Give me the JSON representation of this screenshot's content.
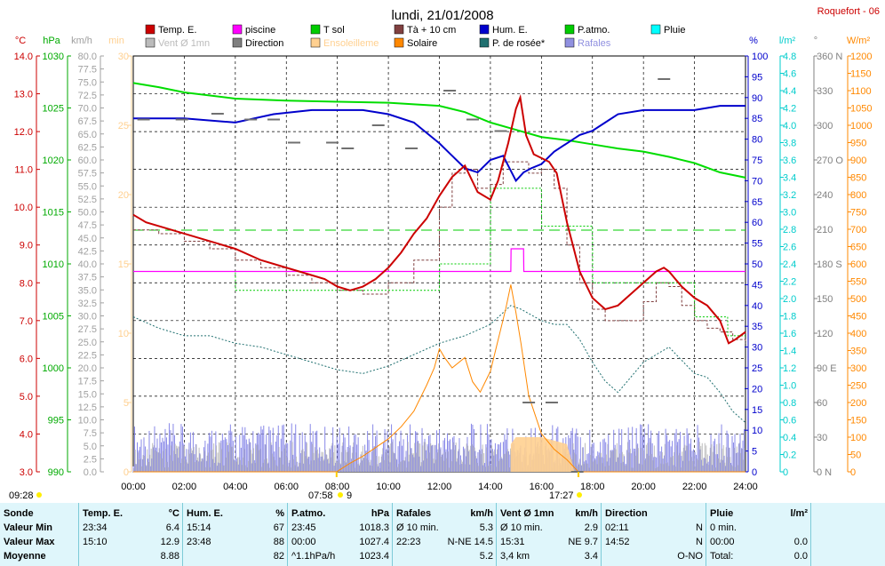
{
  "chart_data": {
    "type": "line",
    "title": "lundi, 21/01/2008",
    "station": "Roquefort - 06",
    "x_ticks": [
      "00:00",
      "02:00",
      "04:00",
      "06:00",
      "08:00",
      "10:00",
      "12:00",
      "14:00",
      "16:00",
      "18:00",
      "20:00",
      "22:00",
      "24:00"
    ],
    "legend": [
      {
        "name": "Temp. E.",
        "color": "#cc0000"
      },
      {
        "name": "piscine",
        "color": "#ff00ff"
      },
      {
        "name": "T sol",
        "color": "#00cc00"
      },
      {
        "name": "Tà + 10 cm",
        "color": "#804040"
      },
      {
        "name": "Hum. E.",
        "color": "#0000cc"
      },
      {
        "name": "P.atmo.",
        "color": "#00cc00"
      },
      {
        "name": "Pluie",
        "color": "#00ffff"
      },
      {
        "name": "Vent Ø 1mn",
        "color": "#bbbbbb"
      },
      {
        "name": "Direction",
        "color": "#808080"
      },
      {
        "name": "Ensoleilleme",
        "color": "#ffd090"
      },
      {
        "name": "Solaire",
        "color": "#ff8800"
      },
      {
        "name": "P. de rosée*",
        "color": "#207070"
      },
      {
        "name": "Rafales",
        "color": "#9090e0"
      }
    ],
    "axes": {
      "temp_c": {
        "unit": "°C",
        "ticks": [
          "14.0",
          "13.0",
          "12.0",
          "11.0",
          "10.0",
          "9.0",
          "8.0",
          "7.0",
          "6.0",
          "5.0",
          "4.0",
          "3.0"
        ],
        "range": [
          3,
          14
        ],
        "color": "#cc0000"
      },
      "press_hpa": {
        "unit": "hPa",
        "ticks": [
          "1030",
          "1025",
          "1020",
          "1015",
          "1010",
          "1005",
          "1000",
          "995",
          "990"
        ],
        "range": [
          990,
          1030
        ],
        "color": "#00aa00"
      },
      "wind_kmh": {
        "unit": "km/h",
        "ticks": [
          "80.0",
          "77.5",
          "75.0",
          "72.5",
          "70.0",
          "67.5",
          "65.0",
          "62.5",
          "60.0",
          "57.5",
          "55.0",
          "52.5",
          "50.0",
          "47.5",
          "45.0",
          "42.5",
          "40.0",
          "37.5",
          "35.0",
          "32.5",
          "30.0",
          "27.5",
          "25.0",
          "22.5",
          "20.0",
          "17.5",
          "15.0",
          "12.5",
          "10.0",
          "7.5",
          "5.0",
          "2.5",
          "0.0"
        ],
        "range": [
          0,
          80
        ],
        "color": "#a0a0a0"
      },
      "sun_min": {
        "unit": "min",
        "ticks": [
          "30",
          "25",
          "20",
          "15",
          "10",
          "5",
          "0"
        ],
        "range": [
          0,
          30
        ],
        "color": "#ffd090"
      },
      "hum_pct": {
        "unit": "%",
        "ticks": [
          "100",
          "95",
          "90",
          "85",
          "80",
          "75",
          "70",
          "65",
          "60",
          "55",
          "50",
          "45",
          "40",
          "35",
          "30",
          "25",
          "20",
          "15",
          "10",
          "5",
          "0"
        ],
        "range": [
          0,
          100
        ],
        "color": "#0000cc"
      },
      "rain_lm2": {
        "unit": "l/m²",
        "ticks": [
          "4.8",
          "4.6",
          "4.4",
          "4.2",
          "4.0",
          "3.8",
          "3.6",
          "3.4",
          "3.2",
          "3.0",
          "2.8",
          "2.6",
          "2.4",
          "2.2",
          "2.0",
          "1.8",
          "1.6",
          "1.4",
          "1.2",
          "1.0",
          "0.8",
          "0.6",
          "0.4",
          "0.2",
          "0"
        ],
        "range": [
          0,
          5
        ],
        "color": "#00cccc"
      },
      "dir_deg": {
        "unit": "°",
        "ticks": [
          "360 N",
          "330",
          "300",
          "270 O",
          "240",
          "210",
          "180 S",
          "150",
          "120",
          "90 E",
          "60",
          "30",
          "0 N"
        ],
        "range": [
          0,
          360
        ],
        "color": "#808080"
      },
      "solar_wm2": {
        "unit": "W/m²",
        "ticks": [
          "1200",
          "1150",
          "1100",
          "1050",
          "1000",
          "950",
          "900",
          "850",
          "800",
          "750",
          "700",
          "650",
          "600",
          "550",
          "500",
          "450",
          "400",
          "350",
          "300",
          "250",
          "200",
          "150",
          "100",
          "50",
          "0"
        ],
        "range": [
          0,
          1200
        ],
        "color": "#ff8800"
      }
    },
    "temp_e": {
      "x": [
        0,
        0.5,
        1,
        2,
        3,
        4,
        5,
        6,
        6.5,
        7,
        7.5,
        8,
        8.5,
        9,
        9.5,
        10,
        10.5,
        11,
        11.5,
        12,
        12.5,
        13,
        13.5,
        14,
        14.3,
        14.7,
        15,
        15.17,
        15.4,
        15.7,
        16,
        16.3,
        16.6,
        17,
        17.5,
        18,
        18.5,
        19,
        19.5,
        20,
        20.5,
        20.8,
        21,
        21.5,
        22,
        22.5,
        23,
        23.34,
        23.6,
        24
      ],
      "y": [
        9.8,
        9.6,
        9.5,
        9.3,
        9.1,
        8.9,
        8.6,
        8.4,
        8.3,
        8.2,
        8.1,
        7.9,
        7.8,
        7.9,
        8.1,
        8.4,
        8.8,
        9.3,
        9.7,
        10.3,
        10.8,
        11.1,
        10.4,
        10.2,
        10.7,
        11.7,
        12.6,
        12.9,
        11.9,
        11.4,
        11.3,
        11.2,
        10.9,
        9.6,
        8.3,
        7.6,
        7.3,
        7.4,
        7.7,
        8.0,
        8.3,
        8.4,
        8.3,
        7.9,
        7.6,
        7.4,
        7.0,
        6.4,
        6.5,
        6.7
      ]
    },
    "ta10": {
      "x": [
        0,
        1,
        2,
        3,
        4,
        5,
        6,
        7,
        8,
        9,
        10,
        11,
        12,
        12.5,
        13,
        13.5,
        14,
        14.5,
        15,
        15.5,
        16,
        16.5,
        17,
        17.5,
        18,
        18.5,
        19,
        20,
        20.5,
        21,
        21.5,
        22,
        22.5,
        23,
        23.5,
        24
      ],
      "y": [
        9.4,
        9.3,
        9.1,
        8.9,
        8.6,
        8.4,
        8.2,
        8.0,
        7.8,
        7.7,
        8.0,
        8.6,
        10.0,
        10.9,
        11.0,
        10.5,
        10.6,
        11.2,
        11.2,
        10.9,
        11.0,
        10.5,
        9.0,
        8.0,
        7.3,
        7.0,
        7.0,
        7.5,
        8.0,
        7.9,
        7.4,
        7.0,
        6.8,
        6.7,
        6.5,
        6.4
      ]
    },
    "dew_point": {
      "x": [
        0,
        1,
        2,
        3,
        4,
        5,
        6,
        7,
        8,
        9,
        10,
        11,
        12,
        13,
        14,
        14.8,
        15.2,
        16,
        16.5,
        17,
        17.5,
        18,
        18.5,
        19,
        20,
        21,
        22,
        22.5,
        23,
        23.5,
        24
      ],
      "y": [
        7.1,
        6.8,
        6.6,
        6.6,
        6.4,
        6.3,
        6.1,
        5.9,
        5.7,
        5.6,
        5.8,
        6.1,
        6.4,
        6.6,
        6.9,
        7.4,
        7.3,
        7.0,
        6.9,
        6.9,
        6.5,
        5.9,
        5.4,
        5.1,
        5.9,
        6.3,
        5.6,
        5.5,
        5.1,
        4.6,
        4.3
      ]
    },
    "t_sol": {
      "x": [
        0,
        4,
        4.01,
        6,
        12,
        12.01,
        14,
        14.01,
        16,
        16.01,
        18,
        18.01,
        22,
        22.01,
        23.3,
        23.31,
        24
      ],
      "y": [
        8.3,
        8.3,
        7.8,
        7.8,
        7.8,
        8.5,
        8.5,
        10.5,
        10.5,
        9.5,
        9.5,
        8.0,
        8.0,
        7.1,
        7.1,
        6.6,
        6.6
      ]
    },
    "piscine": {
      "x": [
        0,
        14.8,
        14.81,
        15.3,
        15.31,
        24
      ],
      "y": [
        8.3,
        8.3,
        8.9,
        8.9,
        8.3,
        8.3
      ]
    },
    "hum_e": {
      "x": [
        0,
        2,
        4,
        5.5,
        7,
        9,
        10,
        11,
        12,
        12.5,
        13,
        13.5,
        14,
        14.5,
        15,
        15.3,
        15.6,
        16,
        16.5,
        17,
        17.5,
        18,
        18.5,
        19,
        20,
        21,
        22,
        23,
        24
      ],
      "y": [
        85,
        85,
        84,
        86,
        87,
        87,
        86,
        84,
        79,
        76,
        73,
        72,
        75,
        76,
        70,
        72,
        73,
        74,
        77,
        79,
        81,
        82,
        84,
        86,
        87,
        87,
        87,
        88,
        88
      ]
    },
    "p_atmo": {
      "x": [
        0,
        1,
        2,
        4,
        6,
        8,
        10,
        12,
        13,
        14,
        15,
        16,
        17,
        18,
        19,
        20,
        21,
        22,
        23,
        24
      ],
      "y": [
        1027.4,
        1027.0,
        1026.5,
        1025.9,
        1025.7,
        1025.6,
        1025.5,
        1025.2,
        1024.6,
        1023.6,
        1022.9,
        1022.2,
        1021.9,
        1021.5,
        1021.1,
        1020.8,
        1020.3,
        1019.7,
        1018.8,
        1018.3
      ]
    },
    "solaire": {
      "x": [
        0,
        7.97,
        8.5,
        9,
        9.5,
        10,
        10.5,
        11,
        11.5,
        11.8,
        12,
        12.2,
        12.5,
        13,
        13.3,
        13.6,
        14,
        14.3,
        14.6,
        14.8,
        15,
        15.2,
        15.5,
        16,
        16.5,
        17,
        17.45,
        24
      ],
      "y": [
        0,
        0,
        25,
        45,
        70,
        95,
        130,
        175,
        250,
        300,
        355,
        330,
        300,
        330,
        260,
        230,
        290,
        380,
        470,
        540,
        460,
        370,
        220,
        110,
        65,
        35,
        0,
        0
      ]
    },
    "sunshine": {
      "x": [
        14.8,
        15,
        16,
        17,
        17.3
      ],
      "y": [
        2,
        2.5,
        2.5,
        2,
        0
      ]
    },
    "wind_avg_kmh": 3.4,
    "gust_avg_kmh": 5.2,
    "direction_deg": [
      [
        0.3,
        305
      ],
      [
        1.8,
        305
      ],
      [
        3.2,
        310
      ],
      [
        4.5,
        305
      ],
      [
        5.4,
        305
      ],
      [
        6.2,
        285
      ],
      [
        7.7,
        285
      ],
      [
        8.3,
        280
      ],
      [
        9.5,
        300
      ],
      [
        10.8,
        280
      ],
      [
        12.3,
        330
      ],
      [
        13.2,
        305
      ],
      [
        14.3,
        295
      ],
      [
        15.4,
        60
      ],
      [
        16.3,
        60
      ],
      [
        17.3,
        0
      ],
      [
        20.7,
        340
      ]
    ],
    "sun_markers": {
      "sunrise": "07:58",
      "sunset": "17:27",
      "moonrise": "09:28",
      "day_mark": "9"
    }
  },
  "table": {
    "headers": {
      "c0": "Sonde",
      "c1": "Temp. E.",
      "c1u": "°C",
      "c2": "Hum. E.",
      "c2u": "%",
      "c3": "P.atmo.",
      "c3u": "hPa",
      "c4": "Rafales",
      "c4u": "km/h",
      "c5": "Vent Ø 1mn",
      "c5u": "km/h",
      "c6": "Direction",
      "c7": "Pluie",
      "c7u": "l/m²"
    },
    "rows": [
      {
        "label": "Valeur Min",
        "t1": "23:34",
        "v1": "6.4",
        "t2": "15:14",
        "v2": "67",
        "t3": "23:45",
        "v3": "1018.3",
        "t4": "Ø 10 min.",
        "v4": "5.3",
        "t5": "Ø 10 min.",
        "v5": "2.9",
        "t6": "02:11",
        "v6": "N",
        "t7": "0 min.",
        "v7": ""
      },
      {
        "label": "Valeur Max",
        "t1": "15:10",
        "v1": "12.9",
        "t2": "23:48",
        "v2": "88",
        "t3": "00:00",
        "v3": "1027.4",
        "t4": "22:23",
        "v4": "N-NE 14.5",
        "t5": "15:31",
        "v5": "NE 9.7",
        "t6": "14:52",
        "v6": "N",
        "t7": "00:00",
        "v7": "0.0"
      },
      {
        "label": "Moyenne",
        "t1": "",
        "v1": "8.88",
        "t2": "",
        "v2": "82",
        "t3": "^1.1hPa/h",
        "v3": "1023.4",
        "t4": "",
        "v4": "5.2",
        "t5": "3,4 km",
        "v5": "3.4",
        "t6": "",
        "v6": "O-NO",
        "t7": "Total:",
        "v7": "0.0"
      }
    ]
  }
}
